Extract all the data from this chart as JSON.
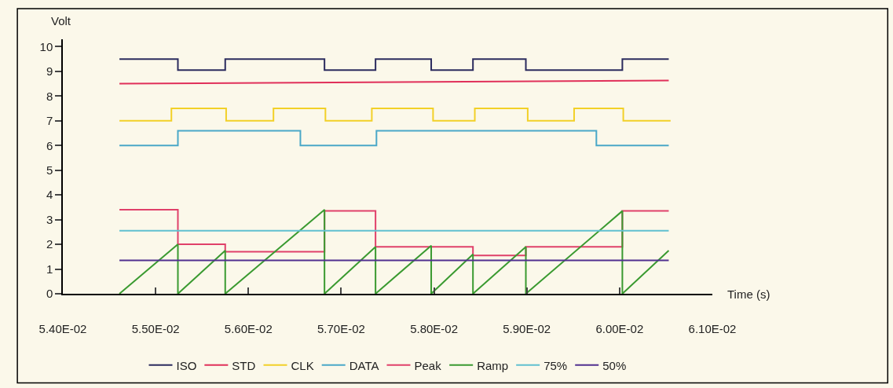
{
  "chart_data": {
    "type": "line",
    "xlabel": "Time (s)",
    "ylabel": "Volt",
    "xlim": [
      0.054,
      0.061
    ],
    "ylim": [
      0,
      10.3
    ],
    "xticks": [
      {
        "value": 0.054,
        "label": "5.40E-02"
      },
      {
        "value": 0.055,
        "label": "5.50E-02"
      },
      {
        "value": 0.056,
        "label": "5.60E-02"
      },
      {
        "value": 0.057,
        "label": "5.70E-02"
      },
      {
        "value": 0.058,
        "label": "5.80E-02"
      },
      {
        "value": 0.059,
        "label": "5.90E-02"
      },
      {
        "value": 0.06,
        "label": "6.00E-02"
      },
      {
        "value": 0.061,
        "label": "6.10E-02"
      }
    ],
    "yticks": [
      0,
      1,
      2,
      3,
      4,
      5,
      6,
      7,
      8,
      9,
      10
    ],
    "grid": false,
    "legend": "bottom",
    "marker": "none",
    "line_style": "solid",
    "series": [
      {
        "name": "ISO",
        "type": "step",
        "color": "#2b2b5e",
        "x": [
          0.05461,
          0.05524,
          0.05575,
          0.05682,
          0.05737,
          0.05797,
          0.05842,
          0.05899,
          0.06003,
          0.06053
        ],
        "values": [
          9.5,
          9.05,
          9.5,
          9.05,
          9.5,
          9.05,
          9.5,
          9.05,
          9.5,
          9.5
        ]
      },
      {
        "name": "STD",
        "color": "#e0305a",
        "x": [
          0.05461,
          0.06053
        ],
        "values": [
          8.5,
          8.63
        ]
      },
      {
        "name": "CLK",
        "type": "step",
        "color": "#f2d028",
        "x": [
          0.05461,
          0.05517,
          0.05576,
          0.05627,
          0.05683,
          0.05733,
          0.05799,
          0.05844,
          0.05901,
          0.05951,
          0.06004,
          0.06055
        ],
        "values": [
          7.0,
          7.5,
          7.0,
          7.5,
          7.0,
          7.5,
          7.0,
          7.5,
          7.0,
          7.5,
          7.0,
          7.0
        ]
      },
      {
        "name": "DATA",
        "type": "step",
        "color": "#4aa8c8",
        "x": [
          0.05461,
          0.05524,
          0.05656,
          0.05738,
          0.05975,
          0.06053
        ],
        "values": [
          6.0,
          6.6,
          6.0,
          6.6,
          6.0,
          6.0
        ]
      },
      {
        "name": "Peak",
        "type": "step",
        "color": "#e0406a",
        "x": [
          0.05461,
          0.05524,
          0.05575,
          0.05682,
          0.05737,
          0.05842,
          0.05899,
          0.06003,
          0.06053
        ],
        "values": [
          3.4,
          2.0,
          1.7,
          3.35,
          1.9,
          1.55,
          1.9,
          3.35,
          3.35
        ]
      },
      {
        "name": "Ramp",
        "color": "#3a9a30",
        "x": [
          0.05461,
          0.05524,
          0.05524,
          0.05575,
          0.05575,
          0.05682,
          0.05682,
          0.05737,
          0.05737,
          0.05797,
          0.05797,
          0.05842,
          0.05842,
          0.05899,
          0.05899,
          0.06003,
          0.06003,
          0.06053
        ],
        "values": [
          0,
          2.0,
          0,
          1.75,
          0,
          3.4,
          0,
          1.9,
          0,
          1.95,
          0,
          1.6,
          0,
          1.9,
          0,
          3.35,
          0,
          1.75
        ]
      },
      {
        "name": "75%",
        "color": "#60c0d0",
        "x": [
          0.05461,
          0.06053
        ],
        "values": [
          2.55,
          2.55
        ]
      },
      {
        "name": "50%",
        "color": "#503090",
        "x": [
          0.05461,
          0.06053
        ],
        "values": [
          1.35,
          1.35
        ]
      }
    ]
  }
}
